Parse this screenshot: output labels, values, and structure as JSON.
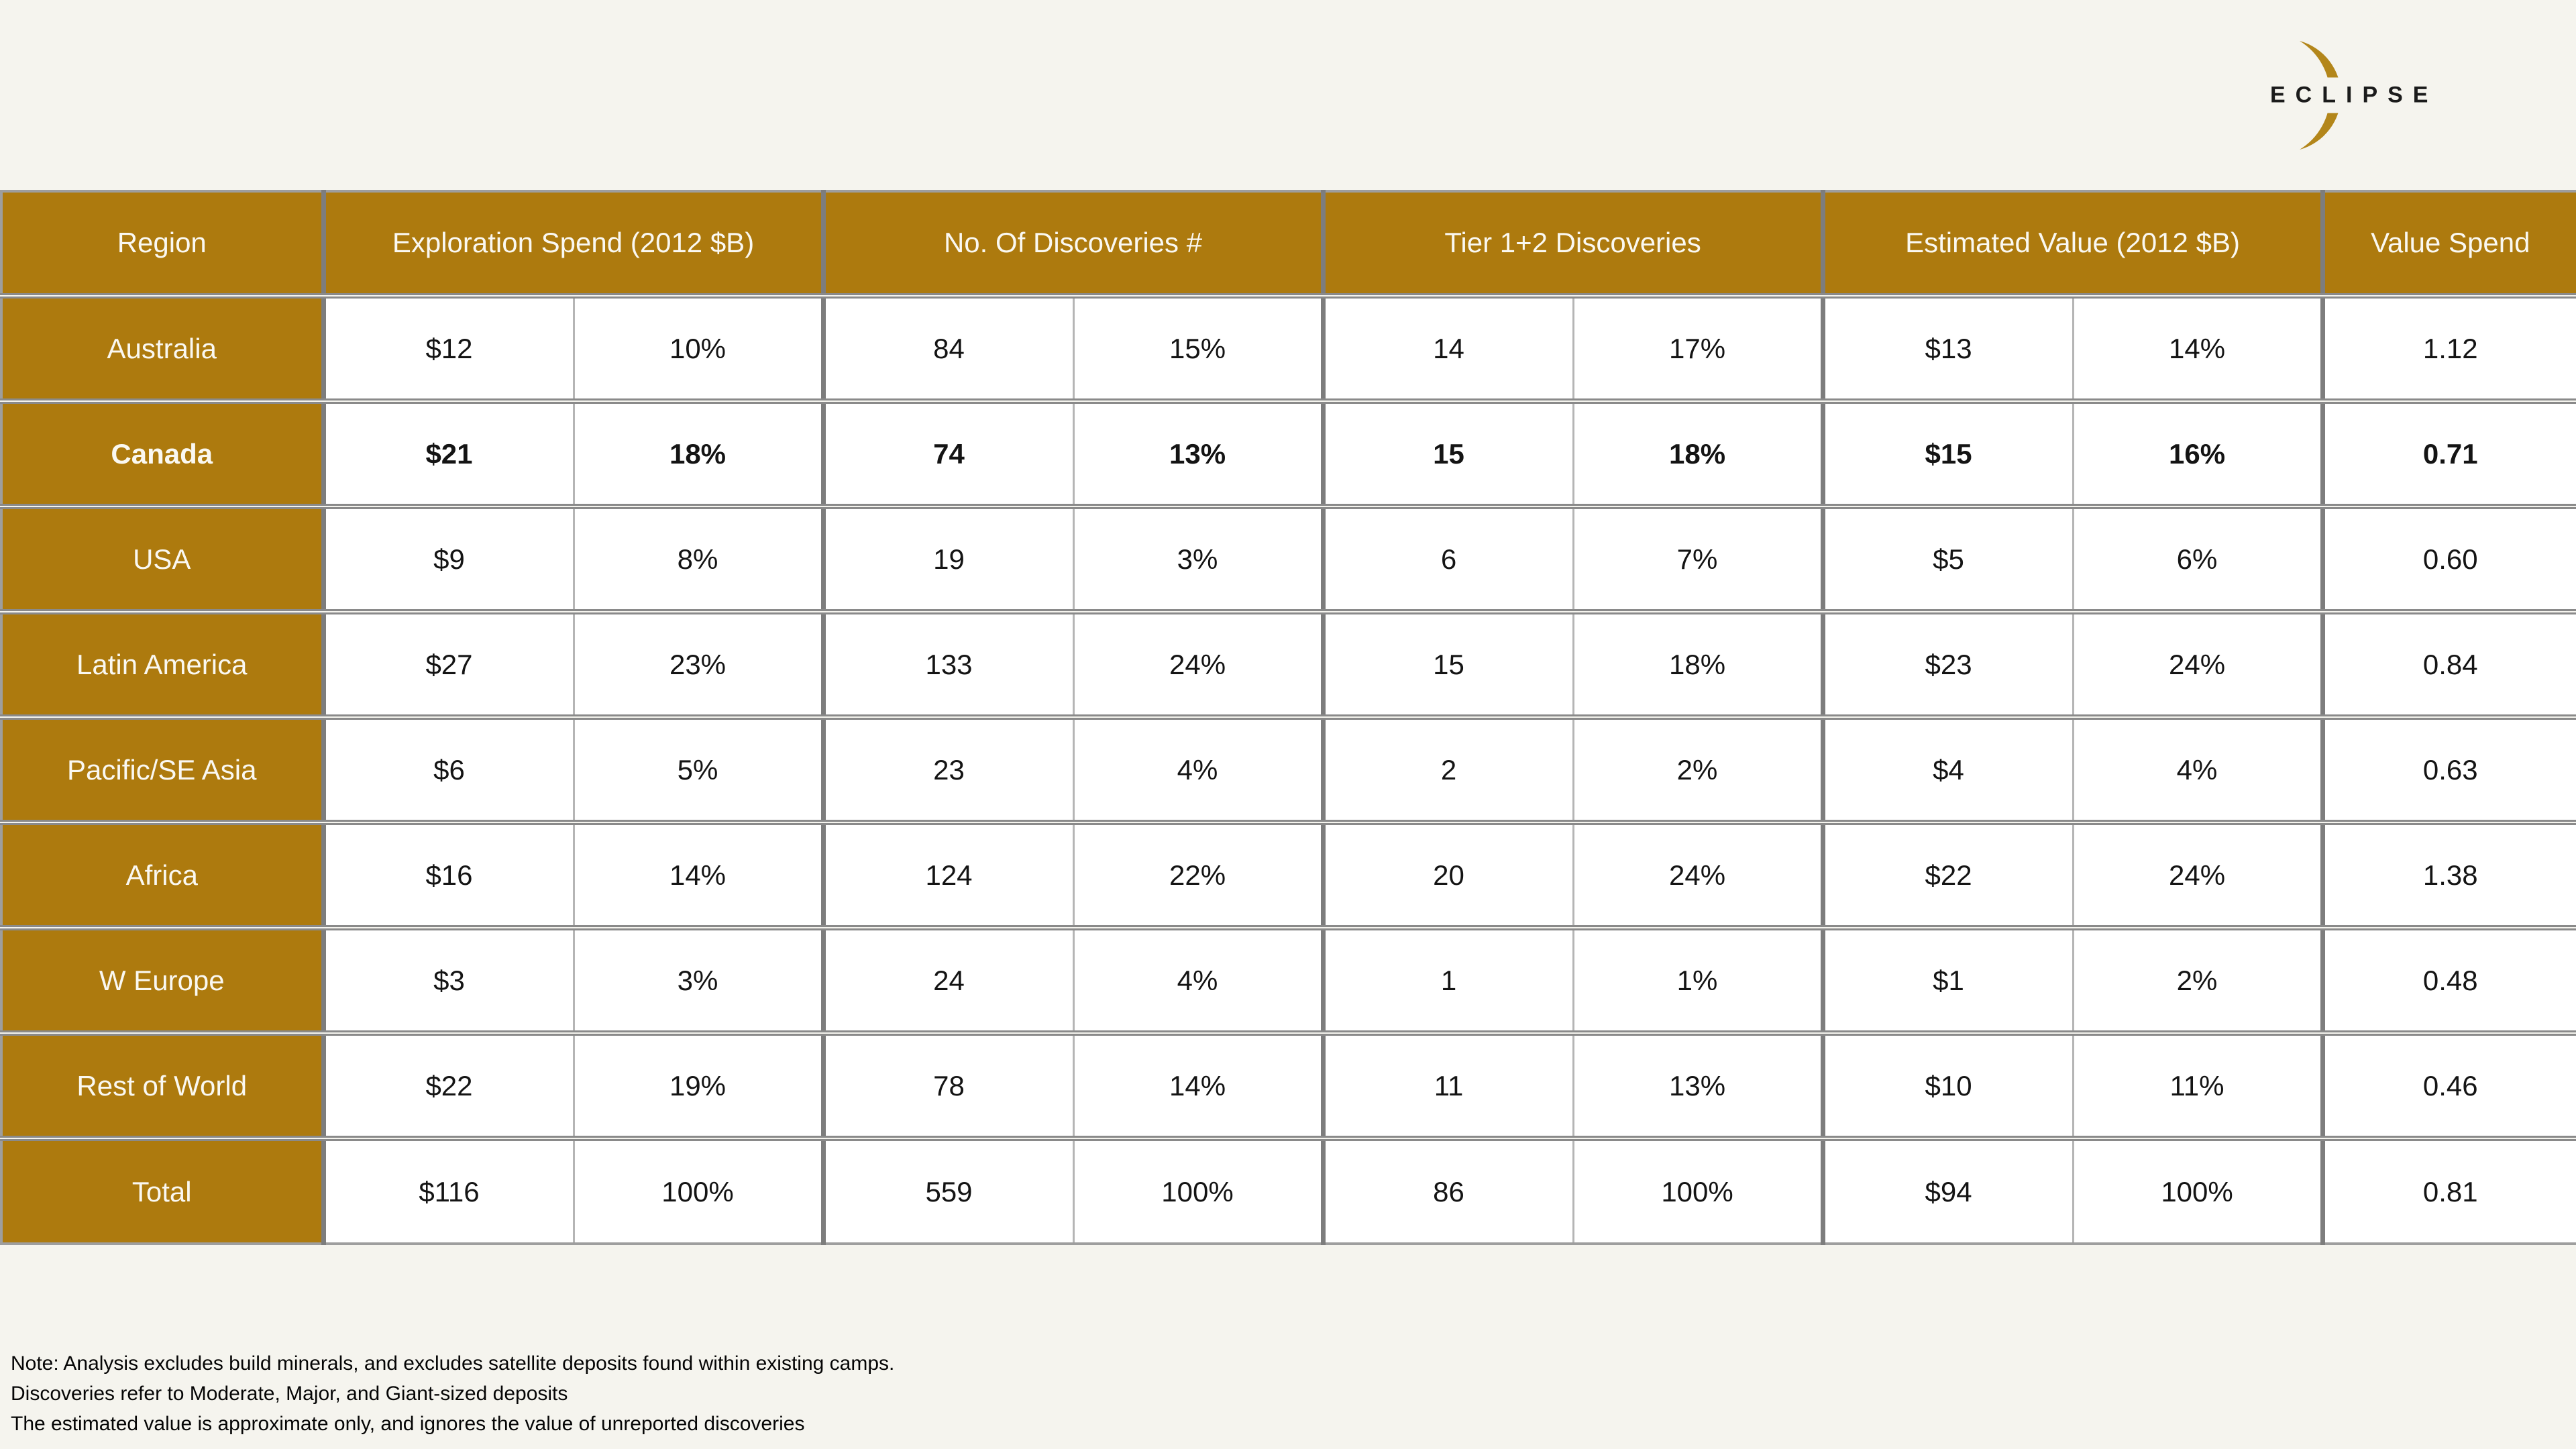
{
  "logo": {
    "text": "ECLIPSE"
  },
  "table": {
    "columns": [
      {
        "label": "Region",
        "span": 1
      },
      {
        "label": "Exploration Spend (2012 $B)",
        "span": 2
      },
      {
        "label": "No. Of Discoveries #",
        "span": 2
      },
      {
        "label": "Tier 1+2 Discoveries",
        "span": 2
      },
      {
        "label": "Estimated Value (2012 $B)",
        "span": 2
      },
      {
        "label": "Value Spend",
        "span": 1
      }
    ],
    "rows": [
      {
        "region": "Australia",
        "bold": false,
        "cells": [
          "$12",
          "10%",
          "84",
          "15%",
          "14",
          "17%",
          "$13",
          "14%",
          "1.12"
        ]
      },
      {
        "region": "Canada",
        "bold": true,
        "cells": [
          "$21",
          "18%",
          "74",
          "13%",
          "15",
          "18%",
          "$15",
          "16%",
          "0.71"
        ]
      },
      {
        "region": "USA",
        "bold": false,
        "cells": [
          "$9",
          "8%",
          "19",
          "3%",
          "6",
          "7%",
          "$5",
          "6%",
          "0.60"
        ]
      },
      {
        "region": "Latin America",
        "bold": false,
        "cells": [
          "$27",
          "23%",
          "133",
          "24%",
          "15",
          "18%",
          "$23",
          "24%",
          "0.84"
        ]
      },
      {
        "region": "Pacific/SE Asia",
        "bold": false,
        "cells": [
          "$6",
          "5%",
          "23",
          "4%",
          "2",
          "2%",
          "$4",
          "4%",
          "0.63"
        ]
      },
      {
        "region": "Africa",
        "bold": false,
        "cells": [
          "$16",
          "14%",
          "124",
          "22%",
          "20",
          "24%",
          "$22",
          "24%",
          "1.38"
        ]
      },
      {
        "region": "W Europe",
        "bold": false,
        "cells": [
          "$3",
          "3%",
          "24",
          "4%",
          "1",
          "1%",
          "$1",
          "2%",
          "0.48"
        ]
      },
      {
        "region": "Rest of World",
        "bold": false,
        "cells": [
          "$22",
          "19%",
          "78",
          "14%",
          "11",
          "13%",
          "$10",
          "11%",
          "0.46"
        ]
      },
      {
        "region": "Total",
        "bold": false,
        "cells": [
          "$116",
          "100%",
          "559",
          "100%",
          "86",
          "100%",
          "$94",
          "100%",
          "0.81"
        ]
      }
    ]
  },
  "notes": [
    "Note: Analysis excludes build minerals, and excludes satellite deposits found within existing camps.",
    "Discoveries refer to Moderate, Major, and Giant-sized deposits",
    "The estimated value is approximate only, and ignores the value of unreported discoveries"
  ],
  "colors": {
    "background": "#F5F4EE",
    "gold": "#AD7A0E",
    "header_text": "#FAF8F1",
    "body_text": "#141414",
    "border_gray": "#8A8A8A",
    "crescent_gold": "#B3861A",
    "logo_text": "#1B1B1B"
  }
}
